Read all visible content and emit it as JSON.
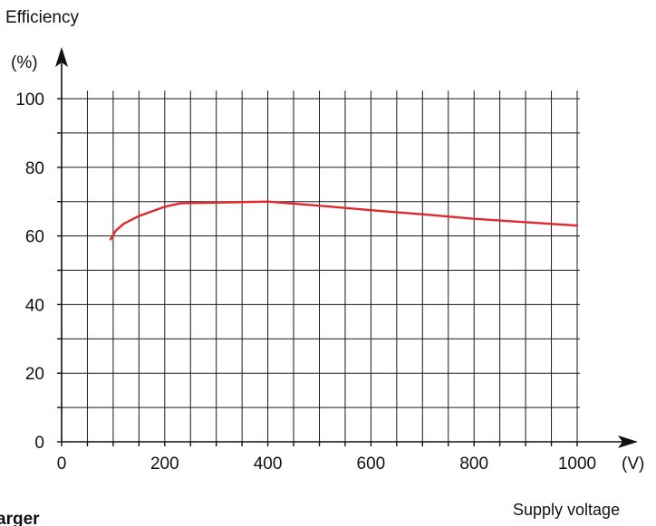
{
  "chart_data": {
    "type": "line",
    "title": "",
    "ylabel": "Efficiency",
    "yunit": "(%)",
    "xlabel": "Supply voltage",
    "xunit": "(V)",
    "xlim": [
      0,
      1000
    ],
    "ylim": [
      0,
      100
    ],
    "grid": true,
    "x_ticks": [
      "0",
      "200",
      "400",
      "600",
      "800",
      "1000"
    ],
    "y_ticks": [
      "0",
      "20",
      "40",
      "60",
      "80",
      "100"
    ],
    "series": [
      {
        "color": "#e0282e",
        "x": [
          95,
          105,
          120,
          150,
          200,
          230,
          300,
          400,
          500,
          600,
          700,
          800,
          900,
          1000
        ],
        "y": [
          59,
          61.5,
          63.5,
          65.8,
          68.5,
          69.5,
          69.7,
          70,
          68.8,
          67.5,
          66.3,
          65,
          64,
          63
        ]
      }
    ]
  },
  "partial_text": "arger"
}
